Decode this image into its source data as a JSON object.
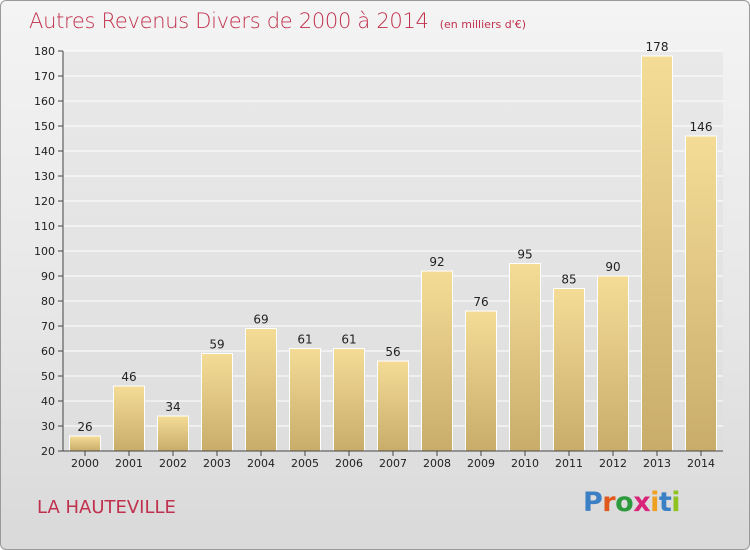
{
  "header": {
    "title": "Autres Revenus Divers de 2000 à 2014",
    "subtitle": "(en milliers d'€)"
  },
  "footer": {
    "town": "LA HAUTEVILLE",
    "logo_text": "Proxiti",
    "logo_colors": [
      "#3b7fc4",
      "#e05a1e",
      "#2e9a3e",
      "#d8257a",
      "#f0a020",
      "#3b7fc4",
      "#8fc31f"
    ]
  },
  "colors": {
    "title": "#c0314d",
    "bar_light": "#f4dc96",
    "bar_dark": "#c9ac6a",
    "grid": "#ffffff",
    "axis": "#444444"
  },
  "chart_data": {
    "type": "bar",
    "title": "Autres Revenus Divers de 2000 à 2014",
    "subtitle": "(en milliers d'€)",
    "categories": [
      "2000",
      "2001",
      "2002",
      "2003",
      "2004",
      "2005",
      "2006",
      "2007",
      "2008",
      "2009",
      "2010",
      "2011",
      "2012",
      "2013",
      "2014"
    ],
    "values": [
      26,
      46,
      34,
      59,
      69,
      61,
      61,
      56,
      92,
      76,
      95,
      85,
      90,
      178,
      146
    ],
    "ylim": [
      20,
      180
    ],
    "yticks": [
      20,
      30,
      40,
      50,
      60,
      70,
      80,
      90,
      100,
      110,
      120,
      130,
      140,
      150,
      160,
      170,
      180
    ],
    "grid": true,
    "legend": "none"
  }
}
